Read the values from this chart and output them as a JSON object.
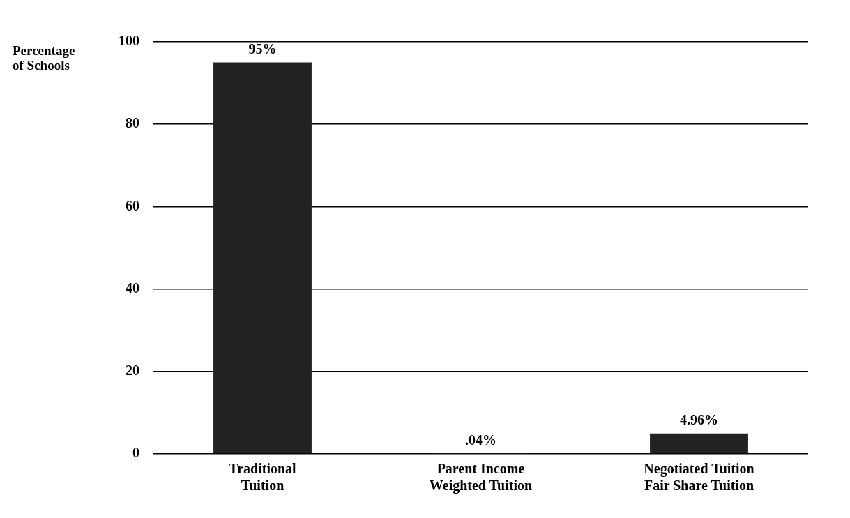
{
  "chart_data": {
    "type": "bar",
    "ylabel": "Percentage\nof Schools",
    "categories": [
      "Traditional\nTuition",
      "Parent Income\nWeighted Tuition",
      "Negotiated Tuition\nFair Share Tuition"
    ],
    "values": [
      95,
      0.04,
      4.96
    ],
    "value_labels": [
      "95%",
      ".04%",
      "4.96%"
    ],
    "color": "#222222",
    "ylim": [
      0,
      100
    ],
    "yticks": [
      0,
      20,
      40,
      60,
      80,
      100
    ],
    "grid": "y",
    "legend": false
  }
}
